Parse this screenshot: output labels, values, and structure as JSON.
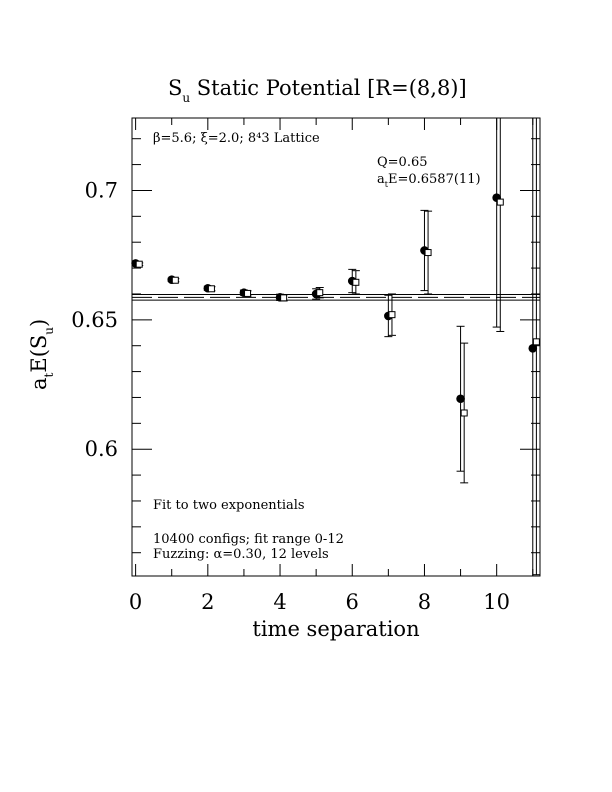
{
  "chart_data": {
    "type": "scatter",
    "title": "S",
    "title_sub": "u",
    "title_rest": " Static Potential [R=(8,8)]",
    "xlabel": "time separation",
    "ylabel": "a",
    "ylabel_sub1": "t",
    "ylabel_mid": "E(S",
    "ylabel_sub2": "u",
    "ylabel_end": ")",
    "xlim": [
      -0.1,
      11.2
    ],
    "ylim": [
      0.551,
      0.728
    ],
    "xticks": [
      0,
      2,
      4,
      6,
      8,
      10
    ],
    "xtick_labels": [
      "0",
      "2",
      "4",
      "6",
      "8",
      "10"
    ],
    "yticks": [
      0.6,
      0.65,
      0.7
    ],
    "ytick_labels": [
      "0.6",
      "0.65",
      "0.7"
    ],
    "annotations": {
      "lattice": "β=5.6; ξ=2.0; 8⁴3 Lattice",
      "q": "Q=0.65",
      "energy_prefix": "a",
      "energy_sub": "t",
      "energy_rest": "E=0.6587(11)",
      "fit": "Fit to two exponentials",
      "configs": "10400 configs; fit range 0-12",
      "fuzzing": "Fuzzing: α=0.30, 12 levels"
    },
    "fit_band": {
      "center": 0.6587,
      "error": 0.0011
    },
    "series": [
      {
        "marker": "filled-circle",
        "points": [
          {
            "x": 0,
            "y": 0.6718,
            "err": 0.0005
          },
          {
            "x": 1,
            "y": 0.6655,
            "err": 0.0006
          },
          {
            "x": 2,
            "y": 0.6622,
            "err": 0.0008
          },
          {
            "x": 3,
            "y": 0.6605,
            "err": 0.001
          },
          {
            "x": 4,
            "y": 0.6587,
            "err": 0.0012
          },
          {
            "x": 5,
            "y": 0.66,
            "err": 0.002
          },
          {
            "x": 6,
            "y": 0.665,
            "err": 0.0045
          },
          {
            "x": 7,
            "y": 0.6515,
            "err": 0.008
          },
          {
            "x": 8,
            "y": 0.6768,
            "err": 0.0155
          },
          {
            "x": 9,
            "y": 0.6195,
            "err": 0.028
          },
          {
            "x": 10,
            "y": 0.6972,
            "err": 0.05
          },
          {
            "x": 11,
            "y": 0.639,
            "err": 0.09
          }
        ]
      },
      {
        "marker": "open-square",
        "points": [
          {
            "x": 0.1,
            "y": 0.6715,
            "err": 0.0005
          },
          {
            "x": 1.1,
            "y": 0.6653,
            "err": 0.0006
          },
          {
            "x": 2.1,
            "y": 0.662,
            "err": 0.0008
          },
          {
            "x": 3.1,
            "y": 0.6602,
            "err": 0.001
          },
          {
            "x": 4.1,
            "y": 0.6585,
            "err": 0.0012
          },
          {
            "x": 5.1,
            "y": 0.6605,
            "err": 0.002
          },
          {
            "x": 6.1,
            "y": 0.6645,
            "err": 0.0045
          },
          {
            "x": 7.1,
            "y": 0.652,
            "err": 0.008
          },
          {
            "x": 8.1,
            "y": 0.676,
            "err": 0.016
          },
          {
            "x": 9.1,
            "y": 0.614,
            "err": 0.027
          },
          {
            "x": 10.1,
            "y": 0.6955,
            "err": 0.05
          },
          {
            "x": 11.1,
            "y": 0.6415,
            "err": 0.09
          }
        ]
      }
    ]
  }
}
